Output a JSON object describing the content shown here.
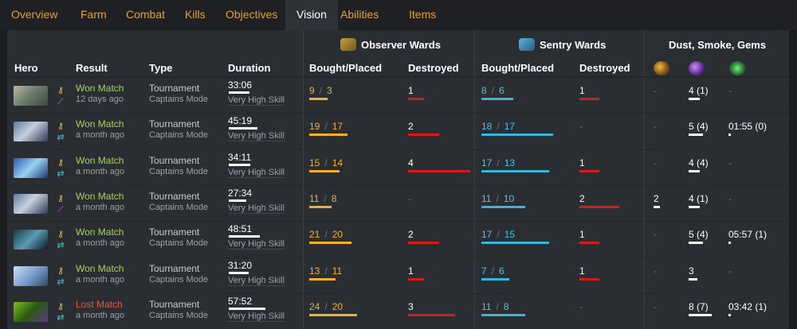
{
  "tabs": [
    {
      "label": "Overview",
      "active": false
    },
    {
      "label": "Farm",
      "active": false
    },
    {
      "label": "Combat",
      "active": false
    },
    {
      "label": "Kills",
      "active": false
    },
    {
      "label": "Objectives",
      "active": false
    },
    {
      "label": "Vision",
      "active": true
    },
    {
      "label": "Abilities",
      "active": false
    },
    {
      "label": "Items",
      "active": false
    }
  ],
  "groups": {
    "observer": "Observer Wards",
    "sentry": "Sentry Wards",
    "dust": "Dust, Smoke, Gems"
  },
  "columns": {
    "hero": "Hero",
    "result": "Result",
    "type": "Type",
    "duration": "Duration",
    "obs_bought": "Bought/Placed",
    "obs_destroyed": "Destroyed",
    "sen_bought": "Bought/Placed",
    "sen_destroyed": "Destroyed"
  },
  "colors": {
    "tab_text": "#e0a23a",
    "won": "#a6d15a",
    "lost": "#e05a4a",
    "observer": "#f0b030",
    "sentry": "#4ec3e0",
    "destroyed_bar": "#d41c1c"
  },
  "rows": [
    {
      "hero": "hero-portrait-1",
      "result": "Won Match",
      "won": true,
      "when": "12 days ago",
      "type": "Tournament",
      "mode": "Captains Mode",
      "duration": "33:06",
      "skill": "Very High Skill",
      "obs": "9",
      "obs_placed": "3",
      "obs_destroyed": "1",
      "sen": "8",
      "sen_placed": "6",
      "sen_destroyed": "1",
      "dust": "-",
      "smoke": "4 (1)",
      "gem": "-"
    },
    {
      "hero": "hero-portrait-2",
      "result": "Won Match",
      "won": true,
      "when": "a month ago",
      "type": "Tournament",
      "mode": "Captains Mode",
      "duration": "45:19",
      "skill": "Very High Skill",
      "obs": "19",
      "obs_placed": "17",
      "obs_destroyed": "2",
      "sen": "18",
      "sen_placed": "17",
      "sen_destroyed": "-",
      "dust": "-",
      "smoke": "5 (4)",
      "gem": "01:55 (0)"
    },
    {
      "hero": "hero-portrait-3",
      "result": "Won Match",
      "won": true,
      "when": "a month ago",
      "type": "Tournament",
      "mode": "Captains Mode",
      "duration": "34:11",
      "skill": "Very High Skill",
      "obs": "15",
      "obs_placed": "14",
      "obs_destroyed": "4",
      "sen": "17",
      "sen_placed": "13",
      "sen_destroyed": "1",
      "dust": "-",
      "smoke": "4 (4)",
      "gem": "-"
    },
    {
      "hero": "hero-portrait-2",
      "result": "Won Match",
      "won": true,
      "when": "a month ago",
      "type": "Tournament",
      "mode": "Captains Mode",
      "duration": "27:34",
      "skill": "Very High Skill",
      "obs": "11",
      "obs_placed": "8",
      "obs_destroyed": "-",
      "sen": "11",
      "sen_placed": "10",
      "sen_destroyed": "2",
      "dust": "2",
      "smoke": "4 (1)",
      "gem": "-"
    },
    {
      "hero": "hero-portrait-4",
      "result": "Won Match",
      "won": true,
      "when": "a month ago",
      "type": "Tournament",
      "mode": "Captains Mode",
      "duration": "48:51",
      "skill": "Very High Skill",
      "obs": "21",
      "obs_placed": "20",
      "obs_destroyed": "2",
      "sen": "17",
      "sen_placed": "15",
      "sen_destroyed": "1",
      "dust": "-",
      "smoke": "5 (4)",
      "gem": "05:57 (1)"
    },
    {
      "hero": "hero-portrait-5",
      "result": "Won Match",
      "won": true,
      "when": "a month ago",
      "type": "Tournament",
      "mode": "Captains Mode",
      "duration": "31:20",
      "skill": "Very High Skill",
      "obs": "13",
      "obs_placed": "11",
      "obs_destroyed": "1",
      "sen": "7",
      "sen_placed": "6",
      "sen_destroyed": "1",
      "dust": "-",
      "smoke": "3",
      "gem": "-"
    },
    {
      "hero": "hero-portrait-6",
      "result": "Lost Match",
      "won": false,
      "when": "a month ago",
      "type": "Tournament",
      "mode": "Captains Mode",
      "duration": "57:52",
      "skill": "Very High Skill",
      "obs": "24",
      "obs_placed": "20",
      "obs_destroyed": "3",
      "sen": "11",
      "sen_placed": "8",
      "sen_destroyed": "-",
      "dust": "-",
      "smoke": "8 (7)",
      "gem": "03:42 (1)"
    }
  ]
}
